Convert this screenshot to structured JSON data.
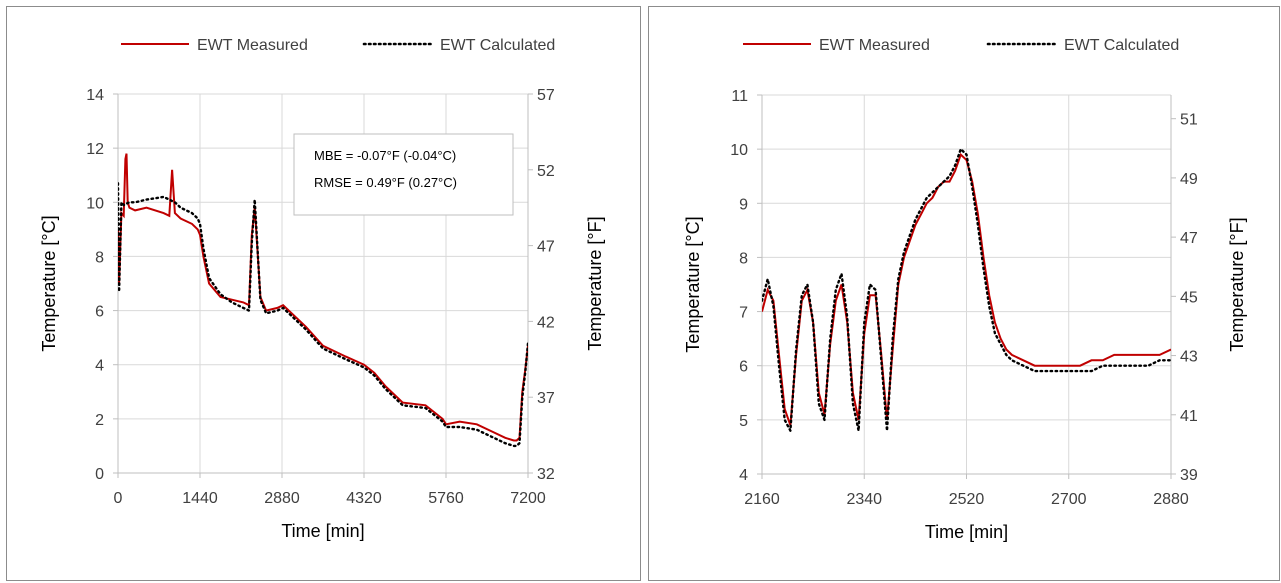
{
  "chart_data": [
    {
      "type": "line",
      "legend": {
        "position": "top",
        "entries": [
          "EWT Measured",
          "EWT Calculated"
        ]
      },
      "xlabel": "Time [min]",
      "ylabel": "Temperature [°C]",
      "y2label": "Temperature [°F]",
      "xlim": [
        0,
        7200
      ],
      "ylim": [
        0,
        14
      ],
      "y2lim": [
        32,
        57
      ],
      "xticks": [
        "0",
        "1440",
        "2880",
        "4320",
        "5760",
        "7200"
      ],
      "yticks": [
        "0",
        "2",
        "4",
        "6",
        "8",
        "10",
        "12",
        "14"
      ],
      "y2ticks": [
        "32",
        "37",
        "42",
        "47",
        "52",
        "57"
      ],
      "grid": true,
      "annotation": [
        "MBE = -0.07°F (-0.04°C)",
        "RMSE = 0.49°F (0.27°C)"
      ],
      "series": [
        {
          "name": "EWT Measured",
          "color": "#c00000",
          "style": "solid",
          "x": [
            0,
            20,
            60,
            100,
            130,
            150,
            170,
            200,
            300,
            500,
            800,
            900,
            950,
            1000,
            1100,
            1300,
            1400,
            1440,
            1500,
            1600,
            1800,
            2000,
            2200,
            2300,
            2350,
            2400,
            2420,
            2500,
            2600,
            2800,
            2900,
            3000,
            3300,
            3600,
            4000,
            4320,
            4500,
            4700,
            5000,
            5400,
            5700,
            5760,
            6000,
            6300,
            6600,
            6800,
            6950,
            7000,
            7050,
            7100,
            7150,
            7200
          ],
          "y": [
            9.0,
            7.0,
            9.6,
            9.5,
            11.6,
            11.8,
            10.0,
            9.8,
            9.7,
            9.8,
            9.6,
            9.5,
            11.2,
            9.6,
            9.4,
            9.2,
            9.0,
            8.8,
            8.0,
            7.0,
            6.5,
            6.4,
            6.3,
            6.2,
            8.8,
            9.8,
            9.2,
            6.5,
            6.0,
            6.1,
            6.2,
            6.0,
            5.4,
            4.7,
            4.3,
            4.0,
            3.7,
            3.2,
            2.6,
            2.5,
            2.0,
            1.8,
            1.9,
            1.8,
            1.5,
            1.3,
            1.2,
            1.2,
            1.3,
            3.0,
            3.8,
            4.7
          ]
        },
        {
          "name": "EWT Calculated",
          "color": "#000000",
          "style": "dotted",
          "x": [
            0,
            20,
            60,
            100,
            200,
            300,
            500,
            800,
            1000,
            1100,
            1300,
            1400,
            1440,
            1500,
            1600,
            1800,
            2000,
            2200,
            2300,
            2350,
            2400,
            2420,
            2500,
            2600,
            2800,
            2900,
            3000,
            3300,
            3600,
            4000,
            4320,
            4500,
            4700,
            5000,
            5400,
            5700,
            5760,
            6000,
            6300,
            6600,
            6800,
            6950,
            7000,
            7050,
            7100,
            7150,
            7200
          ],
          "y": [
            10.7,
            6.7,
            10.0,
            9.9,
            10.0,
            10.0,
            10.1,
            10.2,
            10.0,
            9.8,
            9.6,
            9.4,
            9.2,
            8.3,
            7.2,
            6.6,
            6.3,
            6.1,
            6.0,
            8.5,
            10.1,
            9.4,
            6.4,
            5.9,
            6.0,
            6.1,
            5.9,
            5.3,
            4.6,
            4.2,
            3.9,
            3.6,
            3.1,
            2.5,
            2.4,
            1.9,
            1.7,
            1.7,
            1.6,
            1.3,
            1.1,
            1.0,
            1.0,
            1.1,
            2.8,
            3.7,
            4.8
          ]
        }
      ]
    },
    {
      "type": "line",
      "legend": {
        "position": "top",
        "entries": [
          "EWT Measured",
          "EWT Calculated"
        ]
      },
      "xlabel": "Time [min]",
      "ylabel": "Temperature [°C]",
      "y2label": "Temperature [°F]",
      "xlim": [
        2160,
        2880
      ],
      "ylim": [
        4,
        11
      ],
      "y2lim": [
        39,
        51.8
      ],
      "xticks": [
        "2160",
        "2340",
        "2520",
        "2700",
        "2880"
      ],
      "yticks": [
        "4",
        "5",
        "6",
        "7",
        "8",
        "9",
        "10",
        "11"
      ],
      "y2ticks": [
        "39",
        "41",
        "43",
        "45",
        "47",
        "49",
        "51"
      ],
      "grid": true,
      "series": [
        {
          "name": "EWT Measured",
          "color": "#c00000",
          "style": "solid",
          "x": [
            2160,
            2170,
            2180,
            2190,
            2200,
            2210,
            2220,
            2230,
            2240,
            2250,
            2260,
            2270,
            2280,
            2290,
            2300,
            2310,
            2320,
            2330,
            2340,
            2350,
            2360,
            2370,
            2380,
            2390,
            2400,
            2410,
            2420,
            2430,
            2440,
            2450,
            2460,
            2470,
            2480,
            2490,
            2500,
            2510,
            2520,
            2530,
            2540,
            2550,
            2560,
            2570,
            2580,
            2590,
            2600,
            2620,
            2640,
            2660,
            2680,
            2700,
            2720,
            2740,
            2760,
            2780,
            2800,
            2820,
            2840,
            2860,
            2880
          ],
          "y": [
            7.0,
            7.4,
            7.2,
            6.2,
            5.2,
            4.9,
            6.2,
            7.2,
            7.4,
            6.8,
            5.5,
            5.1,
            6.4,
            7.2,
            7.5,
            6.8,
            5.5,
            5.0,
            6.6,
            7.3,
            7.3,
            6.2,
            5.0,
            6.3,
            7.5,
            8.0,
            8.3,
            8.6,
            8.8,
            9.0,
            9.1,
            9.3,
            9.4,
            9.4,
            9.6,
            9.9,
            9.8,
            9.4,
            8.8,
            8.0,
            7.3,
            6.8,
            6.5,
            6.3,
            6.2,
            6.1,
            6.0,
            6.0,
            6.0,
            6.0,
            6.0,
            6.1,
            6.1,
            6.2,
            6.2,
            6.2,
            6.2,
            6.2,
            6.3
          ]
        },
        {
          "name": "EWT Calculated",
          "color": "#000000",
          "style": "dotted",
          "x": [
            2160,
            2170,
            2180,
            2190,
            2200,
            2210,
            2220,
            2230,
            2240,
            2250,
            2260,
            2270,
            2280,
            2290,
            2300,
            2310,
            2320,
            2330,
            2340,
            2350,
            2360,
            2370,
            2380,
            2390,
            2400,
            2410,
            2420,
            2430,
            2440,
            2450,
            2460,
            2470,
            2480,
            2490,
            2500,
            2510,
            2520,
            2530,
            2540,
            2550,
            2560,
            2570,
            2580,
            2590,
            2600,
            2620,
            2640,
            2660,
            2680,
            2700,
            2720,
            2740,
            2760,
            2780,
            2800,
            2820,
            2840,
            2860,
            2880
          ],
          "y": [
            7.2,
            7.6,
            7.1,
            6.0,
            5.0,
            4.8,
            6.3,
            7.3,
            7.5,
            6.8,
            5.3,
            5.0,
            6.5,
            7.4,
            7.7,
            6.9,
            5.3,
            4.8,
            6.8,
            7.5,
            7.4,
            6.1,
            4.8,
            6.5,
            7.6,
            8.1,
            8.4,
            8.7,
            8.9,
            9.1,
            9.2,
            9.3,
            9.4,
            9.5,
            9.7,
            10.0,
            9.9,
            9.3,
            8.6,
            7.8,
            7.1,
            6.6,
            6.4,
            6.2,
            6.1,
            6.0,
            5.9,
            5.9,
            5.9,
            5.9,
            5.9,
            5.9,
            6.0,
            6.0,
            6.0,
            6.0,
            6.0,
            6.1,
            6.1
          ]
        }
      ]
    }
  ]
}
